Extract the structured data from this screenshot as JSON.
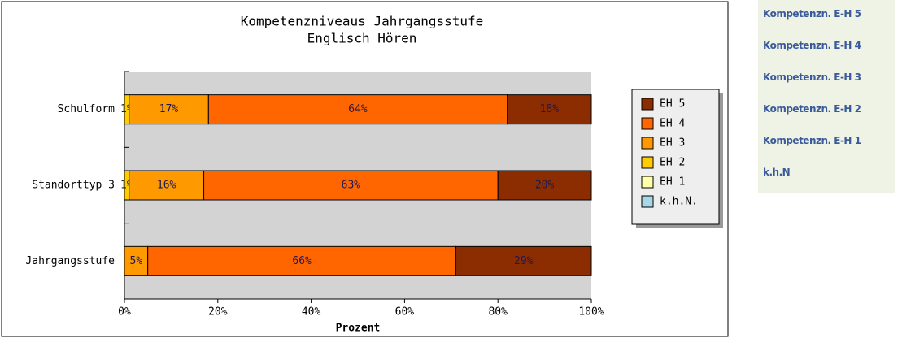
{
  "chart_data": {
    "type": "stacked-bar-horizontal",
    "title": "Kompetenzniveaus  Jahrgangsstufe",
    "subtitle": "Englisch Hören",
    "x_label": "Prozent",
    "categories": [
      "Schulform",
      "Standorttyp 3",
      "Jahrgangsstufe"
    ],
    "series": [
      {
        "name": "EH 5",
        "color": "#8b2d00",
        "values": [
          18,
          20,
          29
        ],
        "value_labels": [
          "18%",
          "20%",
          "29%"
        ]
      },
      {
        "name": "EH 4",
        "color": "#ff6600",
        "values": [
          64,
          63,
          66
        ],
        "value_labels": [
          "64%",
          "63%",
          "66%"
        ]
      },
      {
        "name": "EH 3",
        "color": "#ff9900",
        "values": [
          17,
          16,
          5
        ],
        "value_labels": [
          "17%",
          "16%",
          "5%"
        ]
      },
      {
        "name": "EH 2",
        "color": "#ffcc00",
        "values": [
          1,
          1,
          0
        ],
        "value_labels": [
          "1%",
          "1%",
          null
        ]
      },
      {
        "name": "EH 1",
        "color": "#ffffaa",
        "values": [
          0,
          0,
          0
        ],
        "value_labels": [
          null,
          null,
          null
        ]
      },
      {
        "name": "k.h.N.",
        "color": "#a8d8e8",
        "values": [
          0,
          0,
          0
        ],
        "value_labels": [
          null,
          null,
          null
        ]
      }
    ],
    "xlim": [
      0,
      100
    ],
    "xticks": [
      {
        "value": 0,
        "label": "0%"
      },
      {
        "value": 20,
        "label": "20%"
      },
      {
        "value": 40,
        "label": "40%"
      },
      {
        "value": 60,
        "label": "60%"
      },
      {
        "value": 80,
        "label": "80%"
      },
      {
        "value": 100,
        "label": "100%"
      }
    ],
    "legend": "right"
  },
  "sidebar": {
    "links": [
      "Kompetenzn. E-H 5",
      "Kompetenzn. E-H 4",
      "Kompetenzn. E-H 3",
      "Kompetenzn. E-H 2",
      "Kompetenzn. E-H 1",
      "k.h.N"
    ]
  }
}
